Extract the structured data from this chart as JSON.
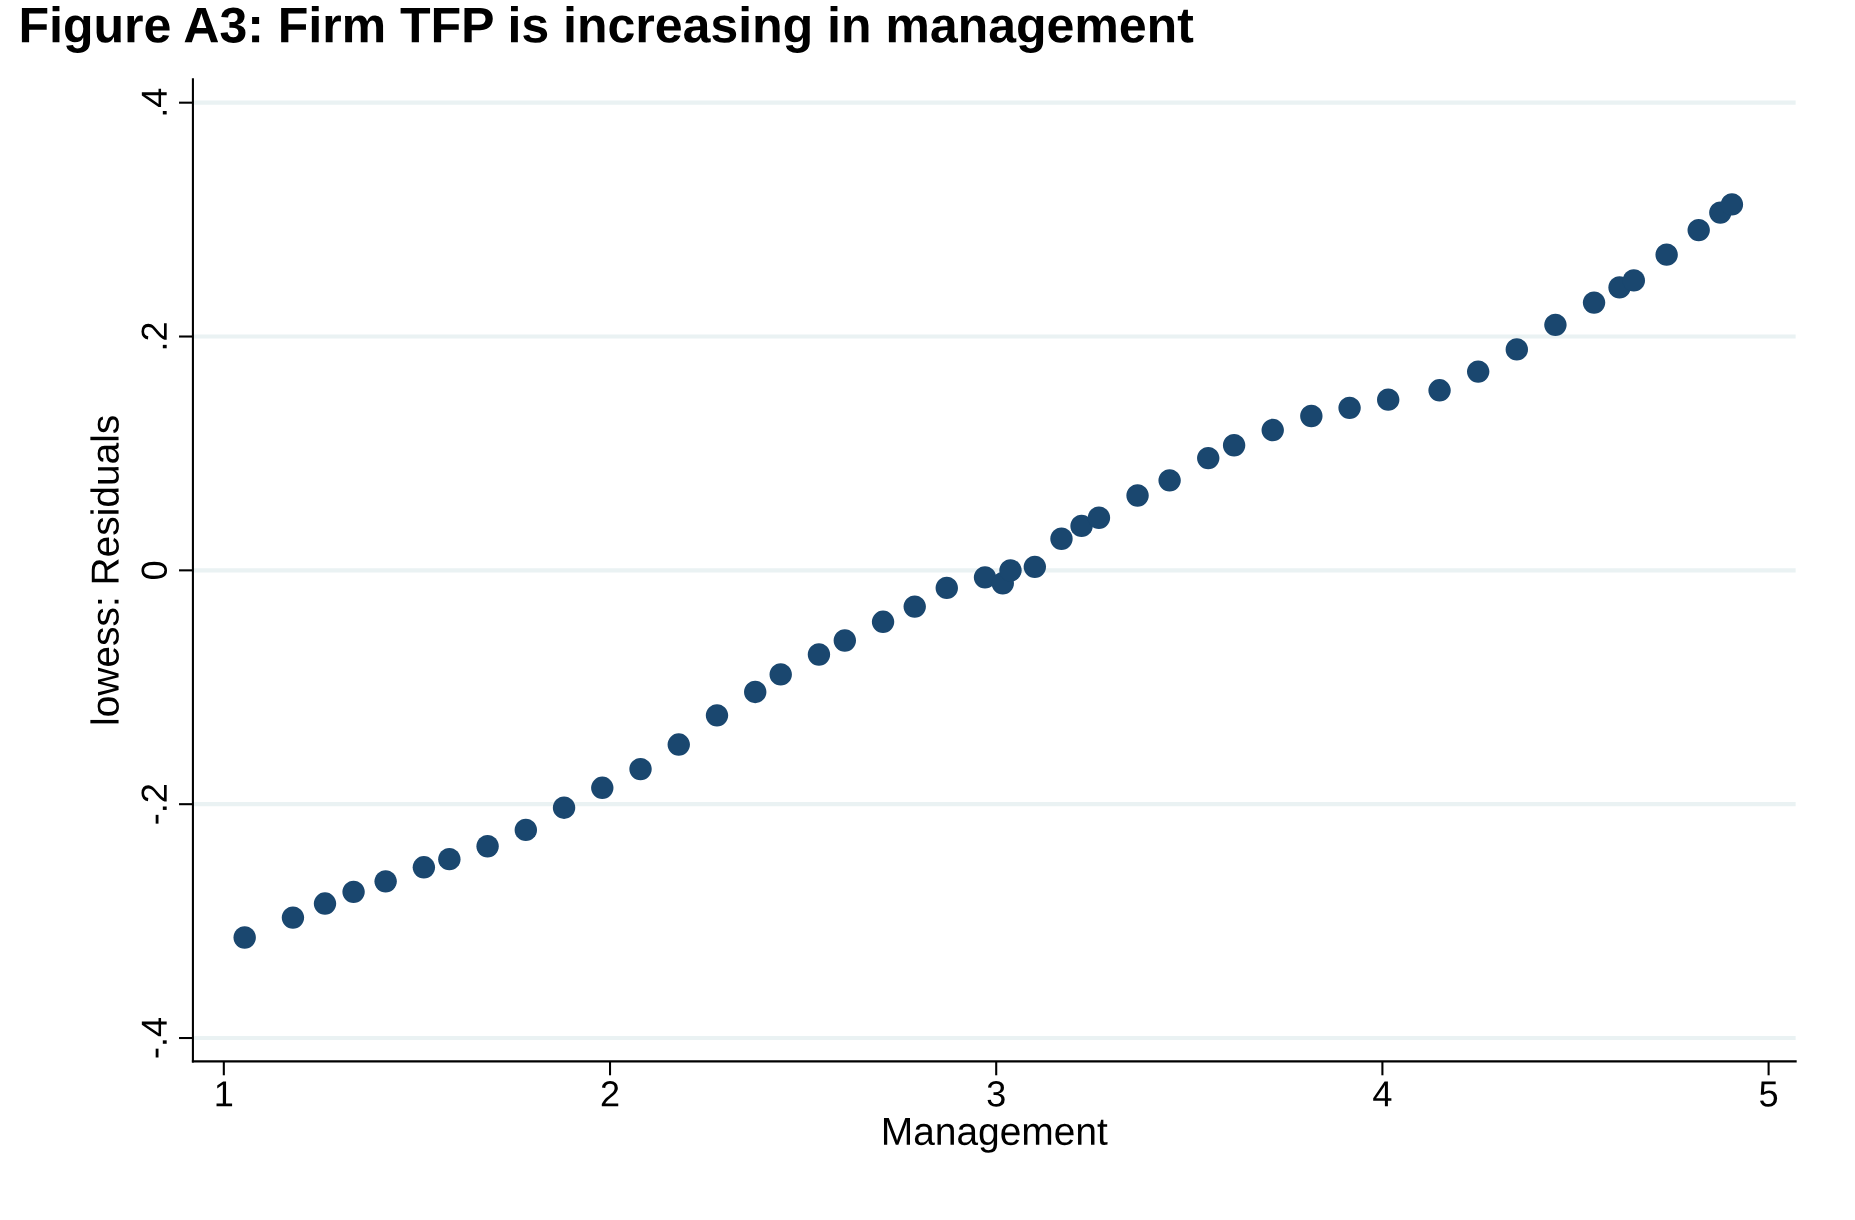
{
  "chart_data": {
    "type": "scatter",
    "title": "Figure A3: Firm TFP is increasing in management",
    "xlabel": "Management",
    "ylabel": "lowess: Residuals",
    "x": [
      1.054,
      1.179,
      1.262,
      1.336,
      1.419,
      1.518,
      1.584,
      1.683,
      1.782,
      1.881,
      1.98,
      2.079,
      2.178,
      2.277,
      2.376,
      2.442,
      2.541,
      2.608,
      2.707,
      2.789,
      2.872,
      2.971,
      3.017,
      3.037,
      3.1,
      3.169,
      3.221,
      3.266,
      3.366,
      3.449,
      3.549,
      3.616,
      3.716,
      3.816,
      3.915,
      4.015,
      4.148,
      4.248,
      4.348,
      4.448,
      4.548,
      4.614,
      4.651,
      4.736,
      4.819,
      4.875,
      4.905
    ],
    "series": [
      {
        "color": "#1a476f",
        "values": [
          -0.314,
          -0.297,
          -0.285,
          -0.275,
          -0.266,
          -0.254,
          -0.247,
          -0.236,
          -0.222,
          -0.203,
          -0.186,
          -0.17,
          -0.149,
          -0.124,
          -0.104,
          -0.089,
          -0.072,
          -0.06,
          -0.044,
          -0.031,
          -0.015,
          -0.006,
          -0.011,
          0.0,
          0.003,
          0.027,
          0.038,
          0.045,
          0.064,
          0.077,
          0.096,
          0.107,
          0.12,
          0.132,
          0.139,
          0.146,
          0.154,
          0.17,
          0.189,
          0.21,
          0.229,
          0.242,
          0.248,
          0.27,
          0.291,
          0.306,
          0.313
        ]
      }
    ],
    "xlim": [
      0.92,
      5.07
    ],
    "ylim": [
      -0.42,
      0.42
    ],
    "xticks": [
      1,
      2,
      3,
      4,
      5
    ],
    "yticks": [
      {
        "value": -0.4,
        "label": "-.4"
      },
      {
        "value": -0.2,
        "label": "-.2"
      },
      {
        "value": 0,
        "label": "0"
      },
      {
        "value": 0.2,
        "label": ".2"
      },
      {
        "value": 0.4,
        "label": ".4"
      }
    ],
    "grid": "y",
    "marker": "circle"
  }
}
